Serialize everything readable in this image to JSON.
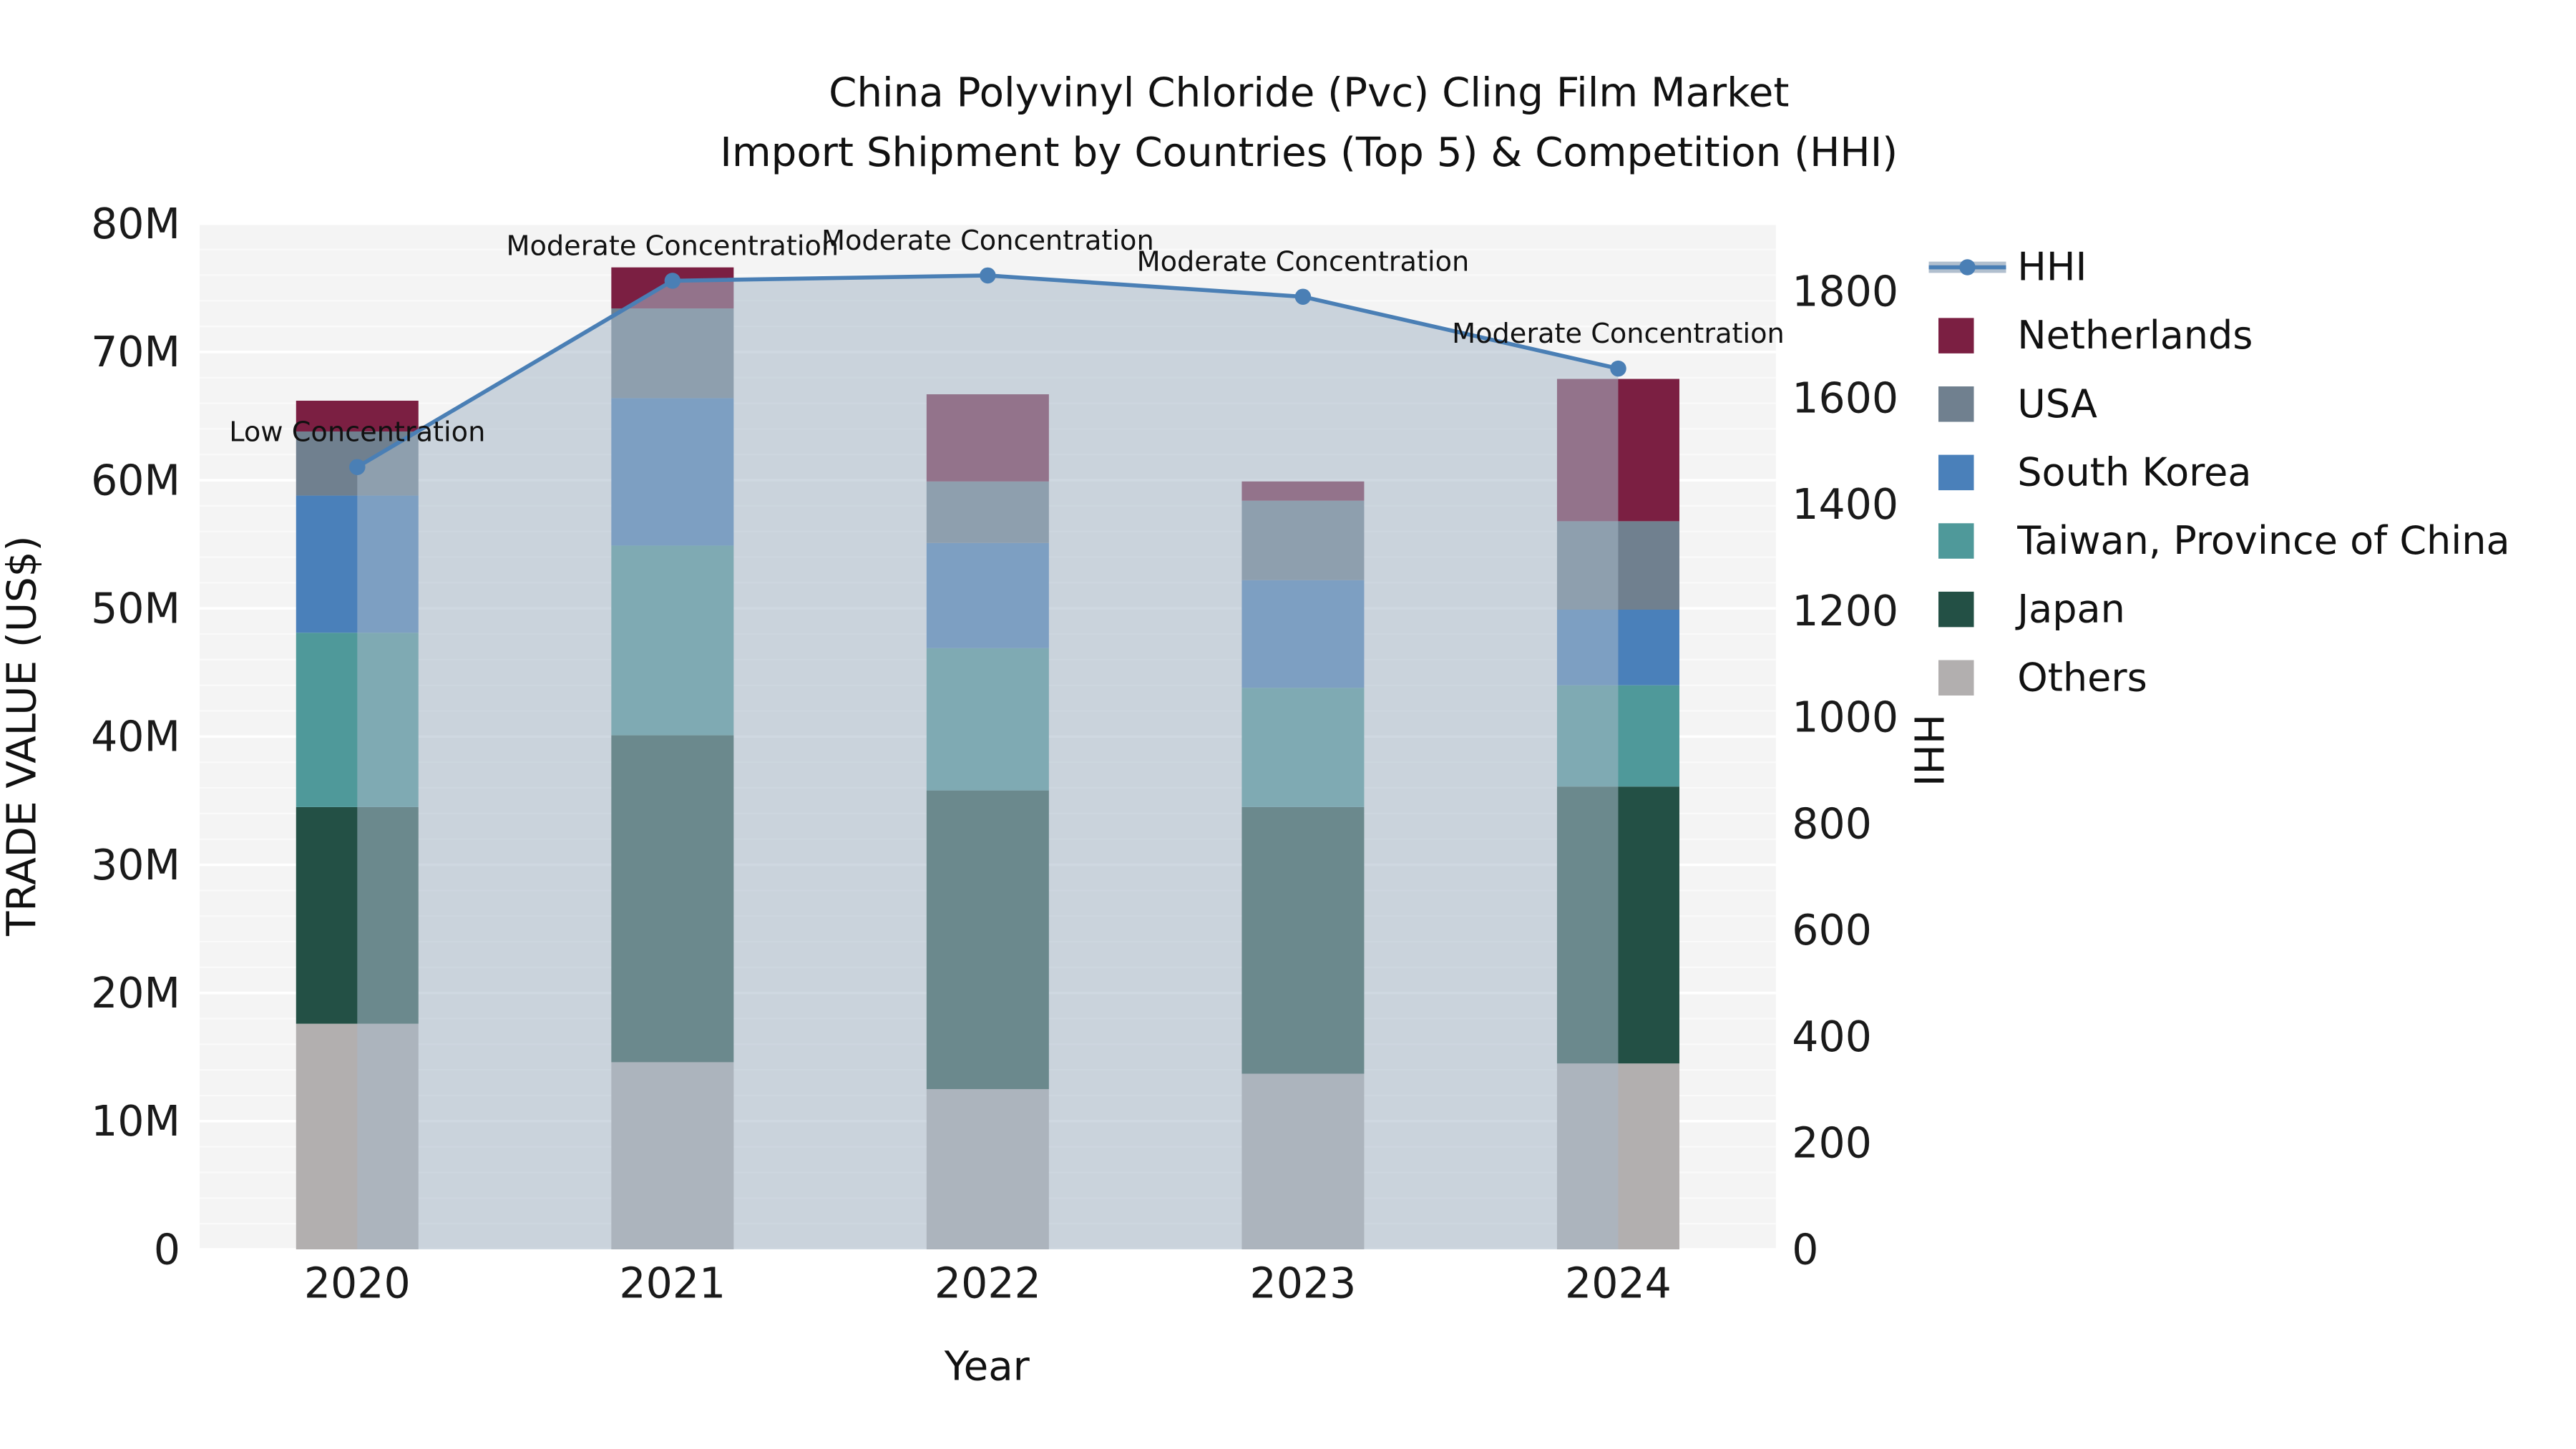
{
  "chart_data": {
    "type": "bar",
    "title_line1": "China Polyvinyl Chloride (Pvc) Cling Film Market",
    "title_line2": "Import Shipment by Countries (Top 5) & Competition (HHI)",
    "xlabel": "Year",
    "ylabel_left": "TRADE VALUE (US$)",
    "ylabel_right": "HHI",
    "categories": [
      "2020",
      "2021",
      "2022",
      "2023",
      "2024"
    ],
    "values_unit": "M US$",
    "series": [
      {
        "name": "Others",
        "color": "#b2afaf",
        "values": [
          17.6,
          14.6,
          12.5,
          13.7,
          14.5
        ]
      },
      {
        "name": "Japan",
        "color": "#235045",
        "values": [
          16.9,
          25.5,
          23.3,
          20.8,
          21.6
        ]
      },
      {
        "name": "Taiwan, Province of China",
        "color": "#4f999a",
        "values": [
          13.6,
          14.8,
          11.1,
          9.3,
          7.9
        ]
      },
      {
        "name": "South Korea",
        "color": "#4a80ba",
        "values": [
          10.7,
          11.5,
          8.2,
          8.4,
          5.9
        ]
      },
      {
        "name": "USA",
        "color": "#70808f",
        "values": [
          5.0,
          7.0,
          4.8,
          6.2,
          6.9
        ]
      },
      {
        "name": "Netherlands",
        "color": "#7b1f42",
        "values": [
          2.4,
          3.2,
          6.8,
          1.5,
          11.1
        ]
      }
    ],
    "hhi": {
      "name": "HHI",
      "color": "#4a7fb5",
      "fill": "rgba(168,184,201,0.55)",
      "values": [
        1470,
        1820,
        1830,
        1790,
        1655
      ]
    },
    "annotations": [
      "Low Concentration",
      "Moderate Concentration",
      "Moderate Concentration",
      "Moderate Concentration",
      "Moderate Concentration"
    ],
    "left_axis": {
      "min": 0,
      "max": 80,
      "tick_step": 10,
      "tick_suffix": "M"
    },
    "right_axis": {
      "min": 0,
      "tick_max": 1800,
      "tick_step": 200
    },
    "legend": [
      "HHI",
      "Netherlands",
      "USA",
      "South Korea",
      "Taiwan, Province of China",
      "Japan",
      "Others"
    ],
    "plot_bg_color": "#f4f4f4",
    "grid_color": "#ffffff"
  }
}
